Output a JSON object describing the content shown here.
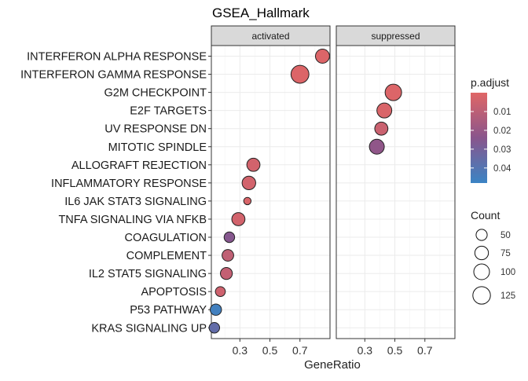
{
  "chart_data": {
    "type": "scatter",
    "title": "GSEA_Hallmark",
    "xlabel": "GeneRatio",
    "ylabel": "",
    "grid": true,
    "xlim": [
      0.11,
      0.9
    ],
    "x_ticks": [
      0.3,
      0.5,
      0.7
    ],
    "x_tick_labels": [
      "0.3",
      "0.5",
      "0.7"
    ],
    "facets": [
      "activated",
      "suppressed"
    ],
    "categories": [
      "INTERFERON ALPHA RESPONSE",
      "INTERFERON GAMMA RESPONSE",
      "G2M CHECKPOINT",
      "E2F TARGETS",
      "UV RESPONSE DN",
      "MITOTIC SPINDLE",
      "ALLOGRAFT REJECTION",
      "INFLAMMATORY RESPONSE",
      "IL6 JAK STAT3 SIGNALING",
      "TNFA SIGNALING VIA NFKB",
      "COAGULATION",
      "COMPLEMENT",
      "IL2 STAT5 SIGNALING",
      "APOPTOSIS",
      "P53 PATHWAY",
      "KRAS SIGNALING UP"
    ],
    "points": [
      {
        "facet": "activated",
        "category": "INTERFERON ALPHA RESPONSE",
        "x": 0.85,
        "count": 80,
        "p_adjust": 0.001
      },
      {
        "facet": "activated",
        "category": "INTERFERON GAMMA RESPONSE",
        "x": 0.7,
        "count": 130,
        "p_adjust": 0.001
      },
      {
        "facet": "activated",
        "category": "ALLOGRAFT REJECTION",
        "x": 0.39,
        "count": 70,
        "p_adjust": 0.004
      },
      {
        "facet": "activated",
        "category": "INFLAMMATORY RESPONSE",
        "x": 0.36,
        "count": 75,
        "p_adjust": 0.004
      },
      {
        "facet": "activated",
        "category": "IL6 JAK STAT3 SIGNALING",
        "x": 0.35,
        "count": 22,
        "p_adjust": 0.002
      },
      {
        "facet": "activated",
        "category": "TNFA SIGNALING VIA NFKB",
        "x": 0.29,
        "count": 70,
        "p_adjust": 0.004
      },
      {
        "facet": "activated",
        "category": "COAGULATION",
        "x": 0.23,
        "count": 45,
        "p_adjust": 0.025
      },
      {
        "facet": "activated",
        "category": "COMPLEMENT",
        "x": 0.22,
        "count": 55,
        "p_adjust": 0.009
      },
      {
        "facet": "activated",
        "category": "IL2 STAT5 SIGNALING",
        "x": 0.21,
        "count": 58,
        "p_adjust": 0.008
      },
      {
        "facet": "activated",
        "category": "APOPTOSIS",
        "x": 0.17,
        "count": 40,
        "p_adjust": 0.005
      },
      {
        "facet": "activated",
        "category": "P53 PATHWAY",
        "x": 0.14,
        "count": 52,
        "p_adjust": 0.046
      },
      {
        "facet": "activated",
        "category": "KRAS SIGNALING UP",
        "x": 0.13,
        "count": 45,
        "p_adjust": 0.036
      },
      {
        "facet": "suppressed",
        "category": "G2M CHECKPOINT",
        "x": 0.49,
        "count": 110,
        "p_adjust": 0.001
      },
      {
        "facet": "suppressed",
        "category": "E2F TARGETS",
        "x": 0.43,
        "count": 90,
        "p_adjust": 0.002
      },
      {
        "facet": "suppressed",
        "category": "UV RESPONSE DN",
        "x": 0.41,
        "count": 70,
        "p_adjust": 0.006
      },
      {
        "facet": "suppressed",
        "category": "MITOTIC SPINDLE",
        "x": 0.38,
        "count": 90,
        "p_adjust": 0.022
      }
    ],
    "color_legend": {
      "title": "p.adjust",
      "range": [
        0.0,
        0.048
      ],
      "ticks": [
        0.01,
        0.02,
        0.03,
        0.04
      ],
      "tick_labels": [
        "0.01",
        "0.02",
        "0.03",
        "0.04"
      ],
      "low_color": "#e06666",
      "high_color": "#3b84c4"
    },
    "size_legend": {
      "title": "Count",
      "values": [
        50,
        75,
        100,
        125
      ],
      "labels": [
        "50",
        "75",
        "100",
        "125"
      ]
    },
    "colors": {
      "panel_border": "#333333",
      "strip_fill": "#d9d9d9",
      "grid": "#ebebeb",
      "point_stroke": "#222222"
    }
  }
}
